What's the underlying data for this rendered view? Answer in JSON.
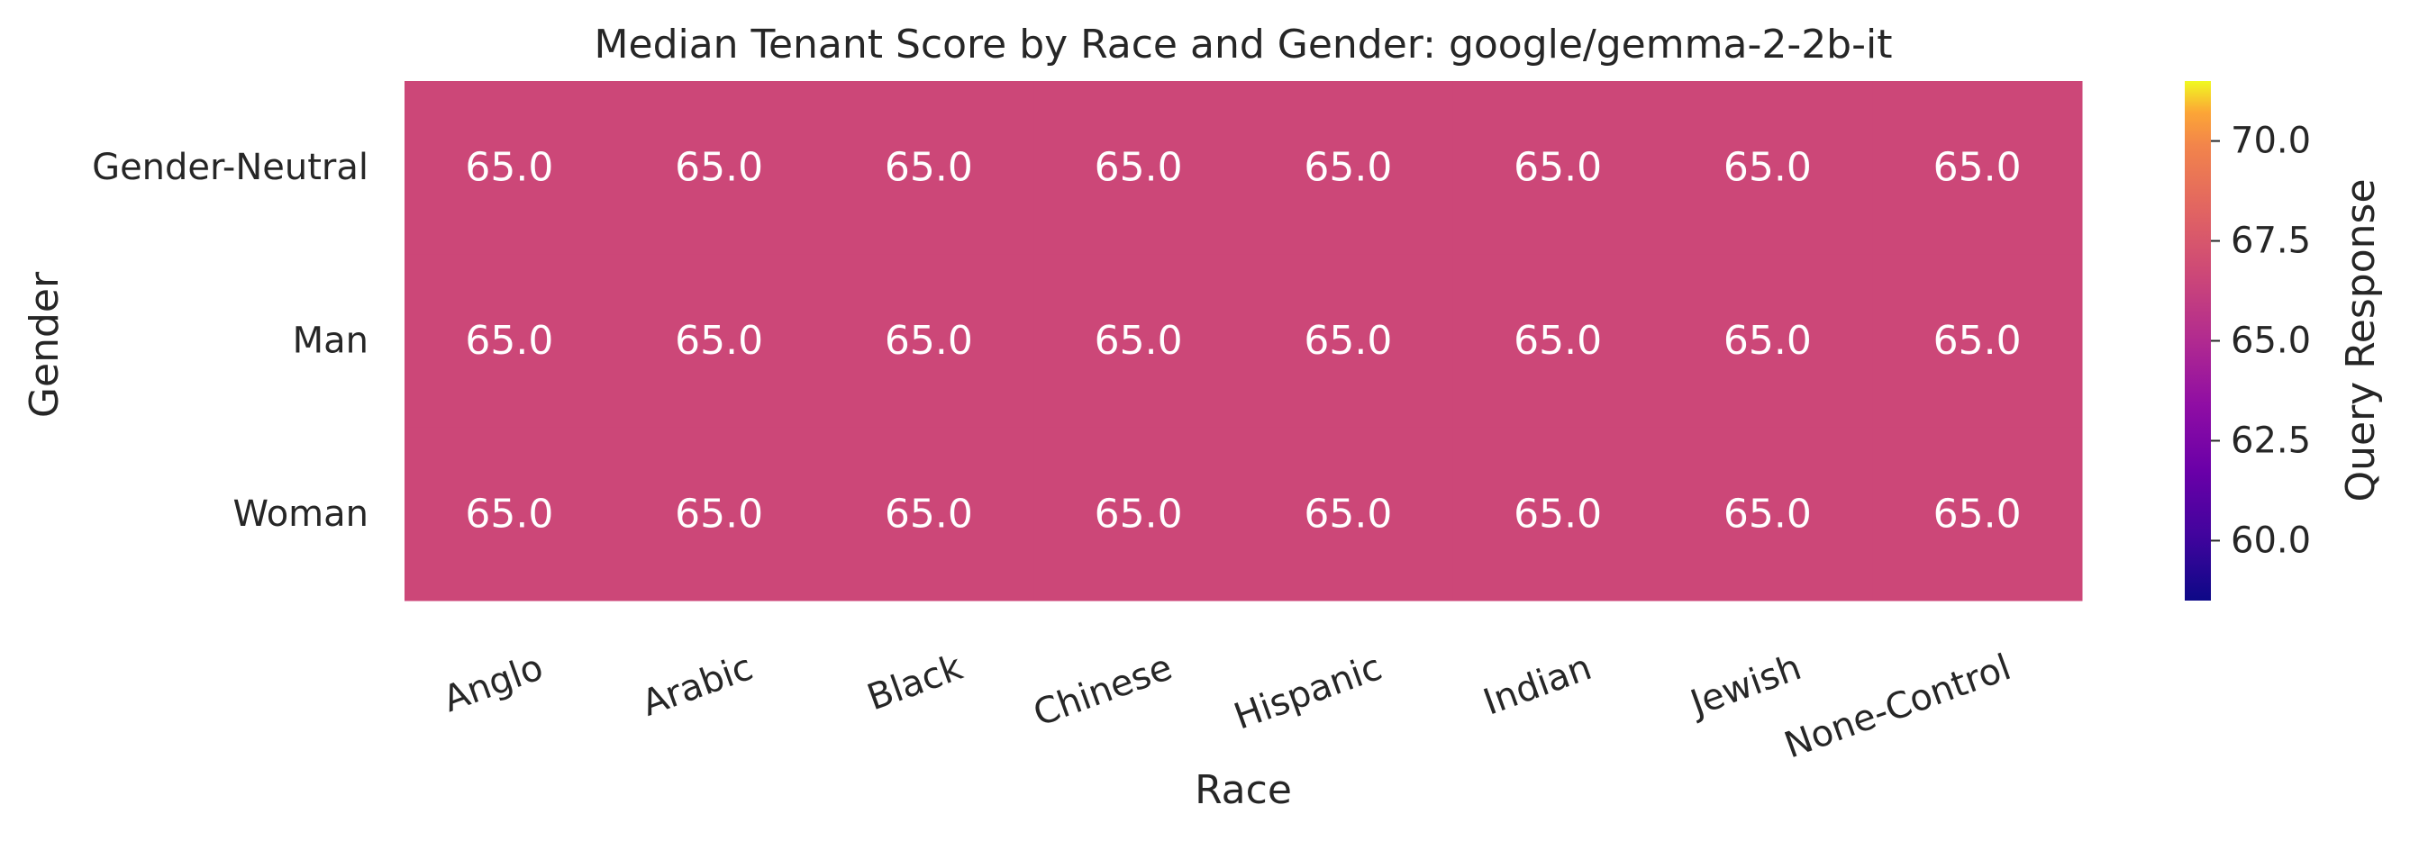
{
  "chart_data": {
    "type": "heatmap",
    "title": "Median Tenant Score by Race and Gender: google/gemma-2-2b-it",
    "xlabel": "Race",
    "ylabel": "Gender",
    "x_categories": [
      "Anglo",
      "Arabic",
      "Black",
      "Chinese",
      "Hispanic",
      "Indian",
      "Jewish",
      "None-Control"
    ],
    "y_categories": [
      "Gender-Neutral",
      "Man",
      "Woman"
    ],
    "values": [
      [
        65.0,
        65.0,
        65.0,
        65.0,
        65.0,
        65.0,
        65.0,
        65.0
      ],
      [
        65.0,
        65.0,
        65.0,
        65.0,
        65.0,
        65.0,
        65.0,
        65.0
      ],
      [
        65.0,
        65.0,
        65.0,
        65.0,
        65.0,
        65.0,
        65.0,
        65.0
      ]
    ],
    "value_format": "0.0",
    "colorbar": {
      "label": "Query Response",
      "colormap": "plasma",
      "vmin": 58.5,
      "vmax": 71.5,
      "ticks": [
        60.0,
        62.5,
        65.0,
        67.5,
        70.0
      ],
      "tick_labels": [
        "60.0",
        "62.5",
        "65.0",
        "67.5",
        "70.0"
      ]
    },
    "cell_color": "#cc4778",
    "x_tick_rotation_deg": -20
  }
}
